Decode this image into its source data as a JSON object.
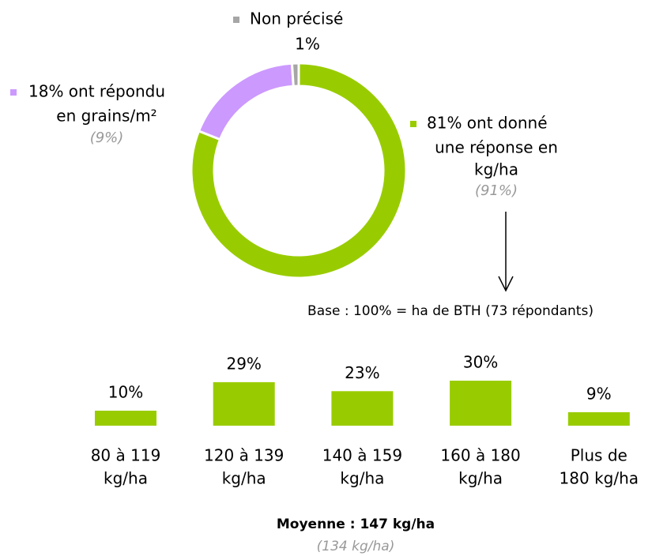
{
  "chart_data": [
    {
      "type": "donut",
      "categories": [
        [
          "81% ont donné",
          "une réponse en",
          "kg/ha"
        ],
        [
          "18% ont répondu",
          "en grains/m²"
        ],
        [
          "Non précisé"
        ]
      ],
      "values": [
        81,
        18,
        1
      ],
      "value_labels": [
        null,
        null,
        "1%"
      ],
      "comparison_labels": [
        "(91%)",
        "(9%)",
        null
      ],
      "colors": [
        "#99cc00",
        "#cc99ff",
        "#a6a6a6"
      ],
      "note": "Base : 100% = ha de BTH (73 répondants)"
    },
    {
      "type": "bar",
      "categories": [
        [
          "80 à 119",
          "kg/ha"
        ],
        [
          "120 à 139",
          "kg/ha"
        ],
        [
          "140 à 159",
          "kg/ha"
        ],
        [
          "160 à 180",
          "kg/ha"
        ],
        [
          "Plus de",
          "180 kg/ha"
        ]
      ],
      "values": [
        10,
        29,
        23,
        30,
        9
      ],
      "value_labels": [
        "10%",
        "29%",
        "23%",
        "30%",
        "9%"
      ],
      "color": "#99cc00",
      "footer": "Moyenne : 147 kg/ha",
      "footer_comparison": "(134 kg/ha)"
    }
  ]
}
